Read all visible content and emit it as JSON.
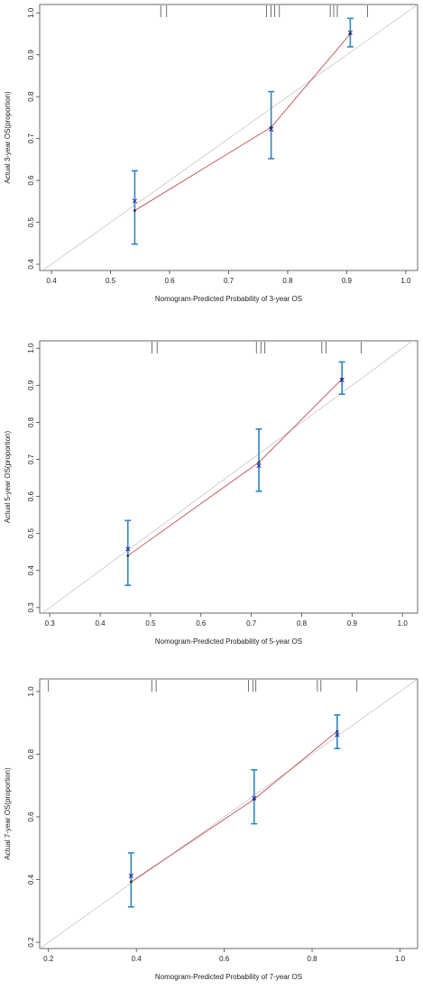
{
  "chart_data": [
    {
      "type": "scatter",
      "title": "",
      "xlabel": "Nomogram-Predicted Probability of 3-year OS",
      "ylabel": "Actual 3-year OS(proportion)",
      "xlim": [
        0.38,
        1.02
      ],
      "ylim": [
        0.385,
        1.02
      ],
      "xticks": [
        "0.4",
        "0.5",
        "0.6",
        "0.7",
        "0.8",
        "0.9",
        "1.0"
      ],
      "yticks": [
        "0.4",
        "0.5",
        "0.6",
        "0.7",
        "0.8",
        "0.9",
        "1.0"
      ],
      "grid": false,
      "ideal_line": [
        [
          0.38,
          0.38
        ],
        [
          1.02,
          1.02
        ]
      ],
      "series": [
        {
          "points": [
            {
              "x": 0.541,
              "observed": 0.528,
              "corrected": 0.551,
              "lower": 0.448,
              "upper": 0.623
            },
            {
              "x": 0.772,
              "observed": 0.727,
              "corrected": 0.722,
              "lower": 0.652,
              "upper": 0.812
            },
            {
              "x": 0.906,
              "observed": 0.95,
              "corrected": 0.953,
              "lower": 0.919,
              "upper": 0.987
            }
          ]
        }
      ],
      "rug": [
        0.585,
        0.595,
        0.764,
        0.772,
        0.778,
        0.786,
        0.872,
        0.878,
        0.884,
        0.935
      ],
      "colors": {
        "calibration": "#c0504d",
        "error_bar": "#2e86c1",
        "ideal": "#c8c8c8",
        "marker": "#2020aa"
      }
    },
    {
      "type": "scatter",
      "title": "",
      "xlabel": "Nomogram-Predicted Probability of 5-year OS",
      "ylabel": "Actual 5-year OS(proportion)",
      "xlim": [
        0.28,
        1.03
      ],
      "ylim": [
        0.285,
        1.02
      ],
      "xticks": [
        "0.3",
        "0.4",
        "0.5",
        "0.6",
        "0.7",
        "0.8",
        "0.9",
        "1.0"
      ],
      "yticks": [
        "0.3",
        "0.4",
        "0.5",
        "0.6",
        "0.7",
        "0.8",
        "0.9",
        "1.0"
      ],
      "grid": false,
      "ideal_line": [
        [
          0.28,
          0.28
        ],
        [
          1.03,
          1.03
        ]
      ],
      "series": [
        {
          "points": [
            {
              "x": 0.455,
              "observed": 0.44,
              "corrected": 0.458,
              "lower": 0.36,
              "upper": 0.535
            },
            {
              "x": 0.715,
              "observed": 0.692,
              "corrected": 0.683,
              "lower": 0.614,
              "upper": 0.782
            },
            {
              "x": 0.88,
              "observed": 0.917,
              "corrected": 0.914,
              "lower": 0.876,
              "upper": 0.963
            }
          ]
        }
      ],
      "rug": [
        0.503,
        0.513,
        0.71,
        0.719,
        0.727,
        0.84,
        0.848,
        0.918
      ],
      "colors": {
        "calibration": "#c0504d",
        "error_bar": "#2e86c1",
        "ideal": "#c8c8c8",
        "marker": "#2020aa"
      }
    },
    {
      "type": "scatter",
      "title": "",
      "xlabel": "Nomogram-Predicted Probability of 7-year OS",
      "ylabel": "Actual 7-year OS(proportion)",
      "xlim": [
        0.18,
        1.04
      ],
      "ylim": [
        0.18,
        1.04
      ],
      "xticks": [
        "0.2",
        "0.4",
        "0.6",
        "0.8",
        "1.0"
      ],
      "yticks": [
        "0.2",
        "0.4",
        "0.6",
        "0.8",
        "1.0"
      ],
      "grid": false,
      "ideal_line": [
        [
          0.18,
          0.18
        ],
        [
          1.04,
          1.04
        ]
      ],
      "series": [
        {
          "points": [
            {
              "x": 0.388,
              "observed": 0.393,
              "corrected": 0.412,
              "lower": 0.313,
              "upper": 0.485
            },
            {
              "x": 0.668,
              "observed": 0.656,
              "corrected": 0.66,
              "lower": 0.578,
              "upper": 0.75
            },
            {
              "x": 0.857,
              "observed": 0.873,
              "corrected": 0.862,
              "lower": 0.818,
              "upper": 0.925
            }
          ]
        }
      ],
      "rug": [
        0.2,
        0.435,
        0.445,
        0.655,
        0.665,
        0.672,
        0.812,
        0.82,
        0.902
      ],
      "colors": {
        "calibration": "#c0504d",
        "error_bar": "#2e86c1",
        "ideal": "#c8c8c8",
        "marker": "#2020aa"
      }
    }
  ]
}
